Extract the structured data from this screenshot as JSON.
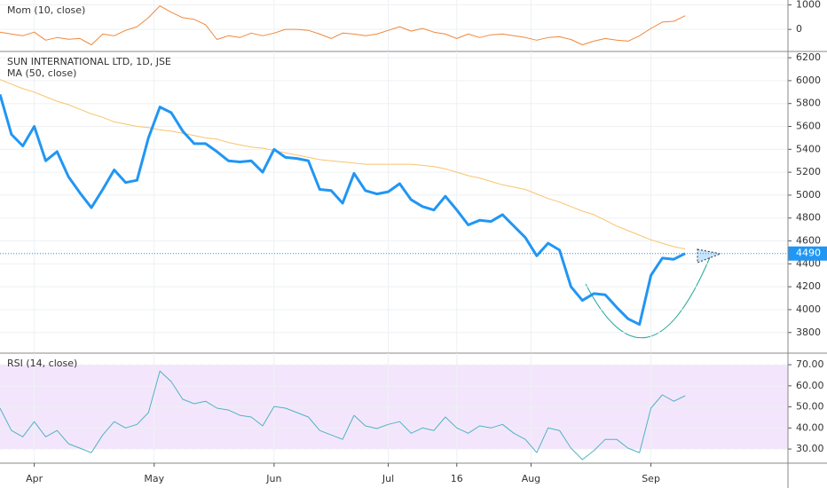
{
  "chart_data": [
    {
      "type": "line",
      "title": "Mom (10, close)",
      "color": "#f0883a",
      "x": [
        0,
        2,
        4,
        6,
        8,
        10,
        12,
        14,
        16,
        18,
        20,
        22,
        24,
        26,
        28,
        30,
        32,
        34,
        36,
        38,
        40,
        42,
        44,
        46,
        48,
        50,
        52,
        54,
        56,
        58,
        60,
        62,
        64,
        66,
        68,
        70,
        72,
        74,
        76,
        78,
        80,
        82,
        84,
        86,
        88,
        90,
        92,
        94,
        96,
        98,
        100,
        102,
        104,
        106,
        108,
        110,
        112,
        114,
        116,
        118,
        120
      ],
      "values": [
        -110,
        -190,
        -260,
        -110,
        -440,
        -330,
        -400,
        -370,
        -630,
        -190,
        -260,
        -40,
        110,
        480,
        960,
        700,
        480,
        410,
        190,
        -410,
        -260,
        -330,
        -150,
        -260,
        -150,
        0,
        0,
        -40,
        -190,
        -370,
        -150,
        -190,
        -260,
        -190,
        -40,
        110,
        -70,
        40,
        -110,
        -190,
        -370,
        -190,
        -330,
        -220,
        -190,
        -260,
        -330,
        -440,
        -330,
        -300,
        -410,
        -630,
        -480,
        -370,
        -440,
        -480,
        -260,
        40,
        300,
        330,
        560
      ],
      "ylim": [
        -900,
        1200
      ],
      "yticks": [
        0,
        1000
      ],
      "grid": true
    },
    {
      "type": "line",
      "title": "SUN INTERNATIONAL LTD, 1D, JSE",
      "x": [
        0,
        2,
        4,
        6,
        8,
        10,
        12,
        14,
        16,
        18,
        20,
        22,
        24,
        26,
        28,
        30,
        32,
        34,
        36,
        38,
        40,
        42,
        44,
        46,
        48,
        50,
        52,
        54,
        56,
        58,
        60,
        62,
        64,
        66,
        68,
        70,
        72,
        74,
        76,
        78,
        80,
        82,
        84,
        86,
        88,
        90,
        92,
        94,
        96,
        98,
        100,
        102,
        104,
        106,
        108,
        110,
        112,
        114,
        116,
        118,
        120
      ],
      "series": [
        {
          "color": "#2196f3",
          "values": [
            5880,
            5530,
            5430,
            5600,
            5300,
            5380,
            5160,
            5020,
            4890,
            5050,
            5220,
            5110,
            5130,
            5500,
            5770,
            5720,
            5560,
            5450,
            5450,
            5380,
            5300,
            5290,
            5300,
            5200,
            5400,
            5330,
            5320,
            5300,
            5050,
            5040,
            4930,
            5190,
            5040,
            5010,
            5030,
            5100,
            4960,
            4900,
            4870,
            4990,
            4870,
            4740,
            4780,
            4770,
            4830,
            4730,
            4630,
            4470,
            4580,
            4520,
            4200,
            4080,
            4140,
            4130,
            4020,
            3920,
            3870,
            4300,
            4450,
            4440,
            4490
          ]
        },
        {
          "name": "MA (50, close)",
          "color": "#f7c46c",
          "values": [
            6010,
            5970,
            5930,
            5900,
            5860,
            5820,
            5790,
            5750,
            5710,
            5680,
            5640,
            5620,
            5600,
            5590,
            5570,
            5560,
            5540,
            5520,
            5500,
            5490,
            5460,
            5440,
            5420,
            5410,
            5390,
            5370,
            5350,
            5330,
            5310,
            5300,
            5290,
            5280,
            5270,
            5270,
            5270,
            5270,
            5270,
            5260,
            5250,
            5230,
            5200,
            5170,
            5150,
            5120,
            5090,
            5070,
            5050,
            5010,
            4970,
            4940,
            4900,
            4860,
            4830,
            4780,
            4730,
            4690,
            4650,
            4610,
            4580,
            4550,
            4530
          ]
        }
      ],
      "last_value": 4490,
      "ylim": [
        3620,
        6255
      ],
      "yticks": [
        3800,
        4000,
        4200,
        4400,
        4600,
        4800,
        5000,
        5200,
        5400,
        5600,
        5800,
        6000,
        6200
      ],
      "grid": true
    },
    {
      "type": "line",
      "title": "RSI (14, close)",
      "color": "#4fb3c2",
      "x": [
        0,
        2,
        4,
        6,
        8,
        10,
        12,
        14,
        16,
        18,
        20,
        22,
        24,
        26,
        28,
        30,
        32,
        34,
        36,
        38,
        40,
        42,
        44,
        46,
        48,
        50,
        52,
        54,
        56,
        58,
        60,
        62,
        64,
        66,
        68,
        70,
        72,
        74,
        76,
        78,
        80,
        82,
        84,
        86,
        88,
        90,
        92,
        94,
        96,
        98,
        100,
        102,
        104,
        106,
        108,
        110,
        112,
        114,
        116,
        118,
        120
      ],
      "values": [
        49.4,
        38.8,
        35.8,
        43,
        35.8,
        38.8,
        32.5,
        30.4,
        28.3,
        36.7,
        43,
        40,
        41.7,
        47.3,
        67,
        62,
        53.6,
        51.5,
        52.7,
        49.4,
        48.5,
        46,
        45.2,
        41,
        50.2,
        49.4,
        47.3,
        45.2,
        38.8,
        36.7,
        34.6,
        46,
        41,
        39.7,
        41.7,
        43,
        37.5,
        40,
        38.8,
        45.2,
        40,
        37.5,
        41,
        40,
        41.7,
        37.5,
        34.6,
        28.3,
        40,
        38.8,
        30.4,
        25,
        29.2,
        34.6,
        34.6,
        30.4,
        28.3,
        49.4,
        55.7,
        52.7,
        55.3
      ],
      "band": [
        30,
        70
      ],
      "ylim": [
        23.3,
        75.5
      ],
      "yticks": [
        {
          "value": 30,
          "label": "30.00"
        },
        {
          "value": 40,
          "label": "40.00"
        },
        {
          "value": 50,
          "label": "50.00"
        },
        {
          "value": 60,
          "label": "60.00"
        },
        {
          "value": 70,
          "label": "70.00"
        }
      ],
      "xlim": [
        0,
        138
      ],
      "xticks": [
        {
          "value": 6,
          "label": "Apr"
        },
        {
          "value": 27,
          "label": "May"
        },
        {
          "value": 48,
          "label": "Jun"
        },
        {
          "value": 68,
          "label": "Jul"
        },
        {
          "value": 80,
          "label": "16"
        },
        {
          "value": 93,
          "label": "Aug"
        },
        {
          "value": 114,
          "label": "Sep"
        }
      ],
      "grid": true
    }
  ]
}
